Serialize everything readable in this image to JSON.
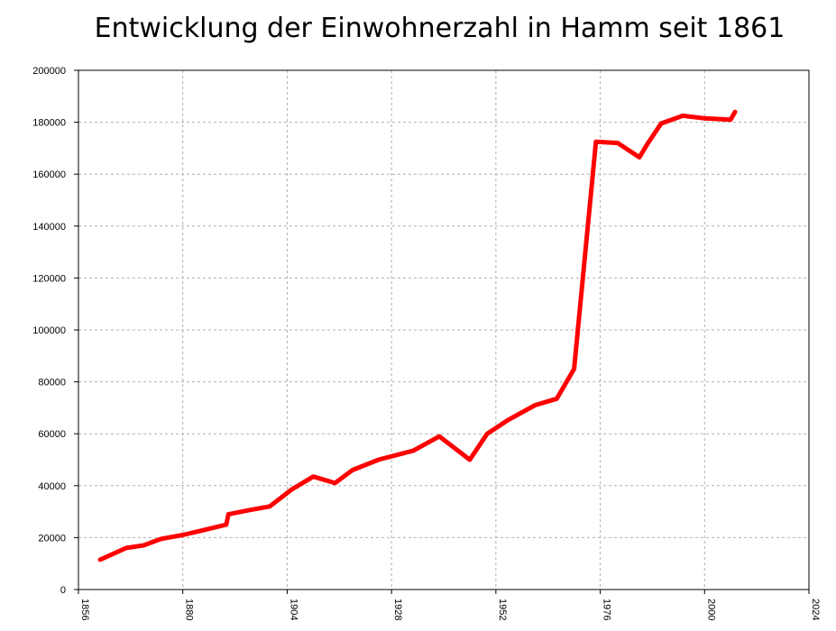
{
  "chart_data": {
    "type": "line",
    "title": "Entwicklung der Einwohnerzahl in Hamm seit 1861",
    "xlabel": "",
    "ylabel": "",
    "xlim": [
      1856,
      2024
    ],
    "ylim": [
      0,
      200000
    ],
    "xticks": [
      1856,
      1880,
      1904,
      1928,
      1952,
      1976,
      2000,
      2024
    ],
    "yticks": [
      0,
      20000,
      40000,
      60000,
      80000,
      100000,
      120000,
      140000,
      160000,
      180000,
      200000
    ],
    "grid": true,
    "legend": "none",
    "series": [
      {
        "color": "#ff0000",
        "x": [
          1861,
          1867,
          1871,
          1875,
          1880,
          1885,
          1890,
          1890.5,
          1895,
          1900,
          1905,
          1910,
          1915,
          1919,
          1925,
          1933,
          1939,
          1946,
          1950,
          1955,
          1961,
          1966,
          1970,
          1975,
          1980,
          1985,
          1987,
          1990,
          1995,
          2000,
          2006,
          2007
        ],
        "y": [
          11500,
          16000,
          17000,
          19500,
          21000,
          23000,
          25000,
          29000,
          30500,
          32000,
          38500,
          43500,
          41000,
          46000,
          50000,
          53500,
          59000,
          50000,
          60000,
          65500,
          71000,
          73500,
          85000,
          172500,
          172000,
          166500,
          172000,
          179500,
          182500,
          181500,
          181000,
          184000
        ]
      }
    ]
  }
}
